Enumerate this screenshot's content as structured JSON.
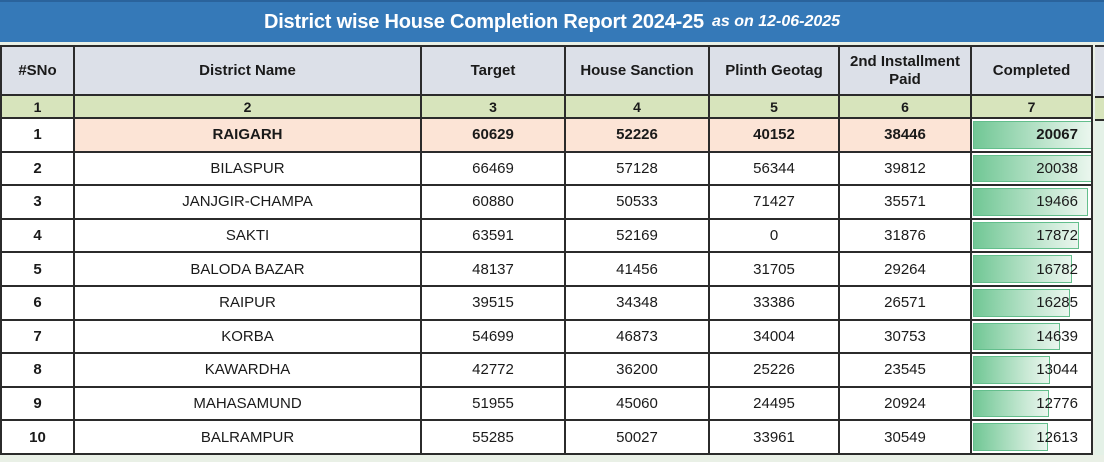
{
  "title": {
    "main": "District wise House Completion Report 2024-25",
    "suffix": "as on 12-06-2025"
  },
  "columns": [
    "#SNo",
    "District Name",
    "Target",
    "House Sanction",
    "Plinth Geotag",
    "2nd Installment Paid",
    "Completed"
  ],
  "column_numbers": [
    "1",
    "2",
    "3",
    "4",
    "5",
    "6",
    "7"
  ],
  "rows": [
    {
      "sno": "1",
      "district": "RAIGARH",
      "target": "60629",
      "sanction": "52226",
      "geotag": "40152",
      "installment": "38446",
      "completed": "20067",
      "bar_pct": 100
    },
    {
      "sno": "2",
      "district": "BILASPUR",
      "target": "66469",
      "sanction": "57128",
      "geotag": "56344",
      "installment": "39812",
      "completed": "20038",
      "bar_pct": 99.9
    },
    {
      "sno": "3",
      "district": "JANJGIR-CHAMPA",
      "target": "60880",
      "sanction": "50533",
      "geotag": "71427",
      "installment": "35571",
      "completed": "19466",
      "bar_pct": 97
    },
    {
      "sno": "4",
      "district": "SAKTI",
      "target": "63591",
      "sanction": "52169",
      "geotag": "0",
      "installment": "31876",
      "completed": "17872",
      "bar_pct": 89.1
    },
    {
      "sno": "5",
      "district": "BALODA BAZAR",
      "target": "48137",
      "sanction": "41456",
      "geotag": "31705",
      "installment": "29264",
      "completed": "16782",
      "bar_pct": 83.6
    },
    {
      "sno": "6",
      "district": "RAIPUR",
      "target": "39515",
      "sanction": "34348",
      "geotag": "33386",
      "installment": "26571",
      "completed": "16285",
      "bar_pct": 81.2
    },
    {
      "sno": "7",
      "district": "KORBA",
      "target": "54699",
      "sanction": "46873",
      "geotag": "34004",
      "installment": "30753",
      "completed": "14639",
      "bar_pct": 73
    },
    {
      "sno": "8",
      "district": "KAWARDHA",
      "target": "42772",
      "sanction": "36200",
      "geotag": "25226",
      "installment": "23545",
      "completed": "13044",
      "bar_pct": 65
    },
    {
      "sno": "9",
      "district": "MAHASAMUND",
      "target": "51955",
      "sanction": "45060",
      "geotag": "24495",
      "installment": "20924",
      "completed": "12776",
      "bar_pct": 63.7
    },
    {
      "sno": "10",
      "district": "BALRAMPUR",
      "target": "55285",
      "sanction": "50027",
      "geotag": "33961",
      "installment": "30549",
      "completed": "12613",
      "bar_pct": 62.9
    }
  ],
  "colors": {
    "title_bar": "#3579B8",
    "title_text": "#FFFFFF",
    "header_bg": "#DCE0E8",
    "index_row_bg": "#D7E4BC",
    "highlight_row_bg": "#FCE4D6",
    "data_bar_fill": "#71C795",
    "data_bar_border": "#63BE8C",
    "grid_border": "#2B2B2B",
    "page_bg": "#E9F0E6"
  }
}
